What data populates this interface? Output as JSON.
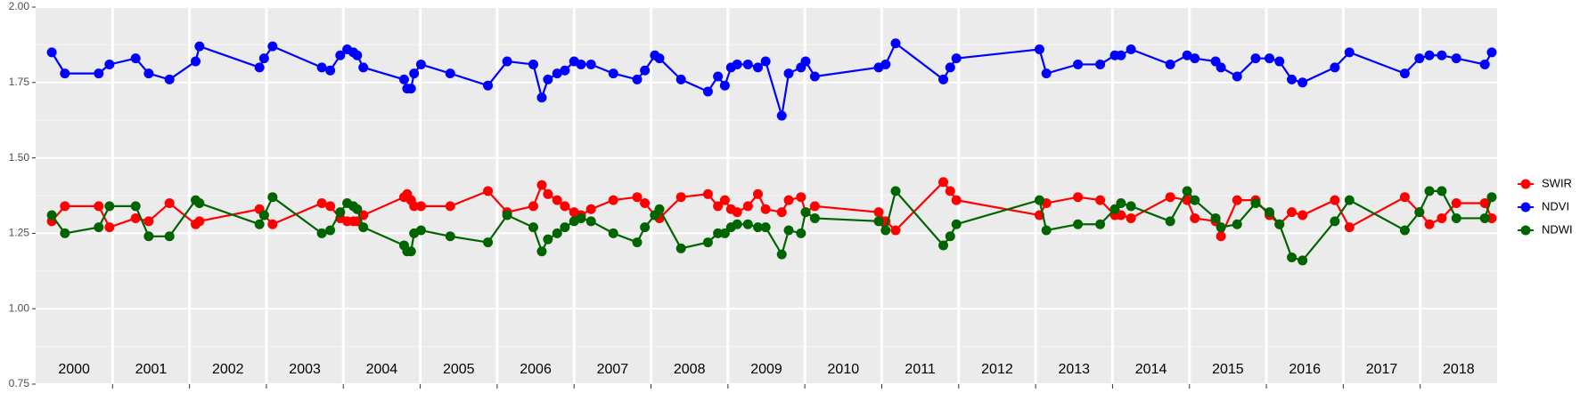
{
  "chart_data": {
    "type": "line",
    "x": [
      2000.21,
      2000.38,
      2000.82,
      2000.96,
      2001.3,
      2001.47,
      2001.74,
      2002.08,
      2002.13,
      2002.91,
      2002.97,
      2003.08,
      2003.72,
      2003.83,
      2003.96,
      2004.05,
      2004.13,
      2004.18,
      2004.26,
      2004.79,
      2004.83,
      2004.88,
      2004.92,
      2005.01,
      2005.39,
      2005.88,
      2006.13,
      2006.47,
      2006.58,
      2006.66,
      2006.78,
      2006.88,
      2007.0,
      2007.09,
      2007.22,
      2007.51,
      2007.82,
      2007.92,
      2008.05,
      2008.11,
      2008.39,
      2008.74,
      2008.87,
      2008.96,
      2009.04,
      2009.12,
      2009.26,
      2009.39,
      2009.49,
      2009.7,
      2009.79,
      2009.95,
      2010.01,
      2010.13,
      2010.96,
      2011.05,
      2011.18,
      2011.8,
      2011.89,
      2011.97,
      2013.05,
      2013.14,
      2013.55,
      2013.84,
      2014.03,
      2014.11,
      2014.24,
      2014.75,
      2014.97,
      2015.07,
      2015.34,
      2015.41,
      2015.62,
      2015.86,
      2016.04,
      2016.17,
      2016.33,
      2016.47,
      2016.89,
      2017.08,
      2017.8,
      2017.99,
      2018.12,
      2018.28,
      2018.47,
      2018.84,
      2018.93
    ],
    "series": [
      {
        "name": "SWIR",
        "color": "#ff0000",
        "values": [
          1.29,
          1.34,
          1.34,
          1.27,
          1.3,
          1.29,
          1.35,
          1.28,
          1.29,
          1.33,
          1.31,
          1.28,
          1.35,
          1.34,
          1.3,
          1.29,
          1.29,
          1.29,
          1.31,
          1.37,
          1.38,
          1.36,
          1.34,
          1.34,
          1.34,
          1.39,
          1.32,
          1.34,
          1.41,
          1.38,
          1.36,
          1.34,
          1.32,
          1.31,
          1.33,
          1.36,
          1.37,
          1.35,
          1.31,
          1.3,
          1.37,
          1.38,
          1.34,
          1.36,
          1.33,
          1.32,
          1.34,
          1.38,
          1.33,
          1.32,
          1.36,
          1.37,
          1.32,
          1.34,
          1.32,
          1.29,
          1.26,
          1.42,
          1.39,
          1.36,
          1.31,
          1.35,
          1.37,
          1.36,
          1.31,
          1.31,
          1.3,
          1.37,
          1.36,
          1.3,
          1.29,
          1.24,
          1.36,
          1.36,
          1.31,
          1.28,
          1.32,
          1.31,
          1.36,
          1.27,
          1.37,
          1.32,
          1.28,
          1.3,
          1.35,
          1.35,
          1.3
        ]
      },
      {
        "name": "NDVI",
        "color": "#0000ff",
        "values": [
          1.85,
          1.78,
          1.78,
          1.81,
          1.83,
          1.78,
          1.76,
          1.82,
          1.87,
          1.8,
          1.83,
          1.87,
          1.8,
          1.79,
          1.84,
          1.86,
          1.85,
          1.84,
          1.8,
          1.76,
          1.73,
          1.73,
          1.78,
          1.81,
          1.78,
          1.74,
          1.82,
          1.81,
          1.7,
          1.76,
          1.78,
          1.79,
          1.82,
          1.81,
          1.81,
          1.78,
          1.76,
          1.79,
          1.84,
          1.83,
          1.76,
          1.72,
          1.77,
          1.74,
          1.8,
          1.81,
          1.81,
          1.8,
          1.82,
          1.64,
          1.78,
          1.8,
          1.82,
          1.77,
          1.8,
          1.81,
          1.88,
          1.76,
          1.8,
          1.83,
          1.86,
          1.78,
          1.81,
          1.81,
          1.84,
          1.84,
          1.86,
          1.81,
          1.84,
          1.83,
          1.82,
          1.8,
          1.77,
          1.83,
          1.83,
          1.82,
          1.76,
          1.75,
          1.8,
          1.85,
          1.78,
          1.83,
          1.84,
          1.84,
          1.83,
          1.81,
          1.85
        ]
      },
      {
        "name": "NDWI",
        "color": "#006400",
        "values": [
          1.31,
          1.25,
          1.27,
          1.34,
          1.34,
          1.24,
          1.24,
          1.36,
          1.35,
          1.28,
          1.31,
          1.37,
          1.25,
          1.26,
          1.32,
          1.35,
          1.34,
          1.33,
          1.27,
          1.21,
          1.19,
          1.19,
          1.25,
          1.26,
          1.24,
          1.22,
          1.31,
          1.27,
          1.19,
          1.23,
          1.25,
          1.27,
          1.29,
          1.3,
          1.29,
          1.25,
          1.22,
          1.27,
          1.31,
          1.33,
          1.2,
          1.22,
          1.25,
          1.25,
          1.27,
          1.28,
          1.28,
          1.27,
          1.27,
          1.18,
          1.26,
          1.25,
          1.32,
          1.3,
          1.29,
          1.26,
          1.39,
          1.21,
          1.24,
          1.28,
          1.36,
          1.26,
          1.28,
          1.28,
          1.33,
          1.35,
          1.34,
          1.29,
          1.39,
          1.36,
          1.3,
          1.27,
          1.28,
          1.35,
          1.32,
          1.28,
          1.17,
          1.16,
          1.29,
          1.36,
          1.26,
          1.32,
          1.39,
          1.39,
          1.3,
          1.3,
          1.37
        ]
      }
    ],
    "year_labels": [
      "2000",
      "2001",
      "2002",
      "2003",
      "2004",
      "2005",
      "2006",
      "2007",
      "2008",
      "2009",
      "2010",
      "2011",
      "2012",
      "2013",
      "2014",
      "2015",
      "2016",
      "2017",
      "2018"
    ],
    "xlim": [
      2000,
      2019
    ],
    "xticks": [
      2001,
      2002,
      2003,
      2004,
      2005,
      2006,
      2007,
      2008,
      2009,
      2010,
      2011,
      2012,
      2013,
      2014,
      2015,
      2016,
      2017,
      2018
    ],
    "ylim": [
      0.75,
      2.0
    ],
    "yticks": [
      {
        "value": 0.75,
        "label": "0.75"
      },
      {
        "value": 1.0,
        "label": "1.00"
      },
      {
        "value": 1.25,
        "label": "1.25"
      },
      {
        "value": 1.5,
        "label": "1.50"
      },
      {
        "value": 1.75,
        "label": "1.75"
      },
      {
        "value": 2.0,
        "label": "2.00"
      }
    ],
    "grid": true,
    "legend": "right"
  }
}
